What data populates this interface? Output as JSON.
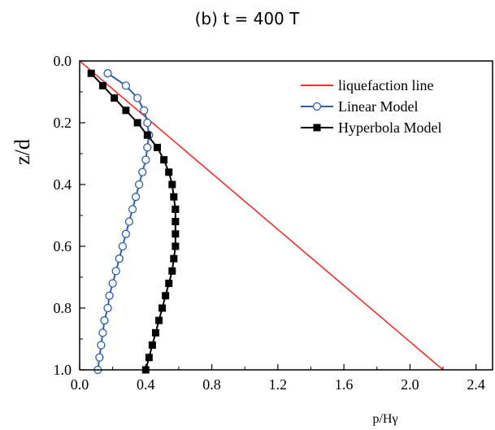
{
  "chart_data": {
    "type": "line",
    "title": "(b) t = 400 T",
    "xlabel": "p/Hγ",
    "ylabel": "z/d",
    "xlim": [
      0.0,
      2.5
    ],
    "ylim": [
      0.0,
      1.0
    ],
    "y_inverted": true,
    "xticks": [
      "0.0",
      "0.4",
      "0.8",
      "1.2",
      "1.6",
      "2.0",
      "2.4"
    ],
    "yticks": [
      "0.0",
      "0.2",
      "0.4",
      "0.6",
      "0.8",
      "1.0"
    ],
    "grid": false,
    "legend_position": "top-right",
    "series": [
      {
        "name": "liquefaction line",
        "color": "#e8312b",
        "marker": "none",
        "points": [
          [
            0.0,
            0.0
          ],
          [
            2.2,
            1.0
          ]
        ]
      },
      {
        "name": "Linear Model",
        "color": "#2f5eaa",
        "marker": "open-circle",
        "points": [
          [
            0.17,
            0.04
          ],
          [
            0.28,
            0.08
          ],
          [
            0.35,
            0.12
          ],
          [
            0.39,
            0.16
          ],
          [
            0.41,
            0.2
          ],
          [
            0.42,
            0.24
          ],
          [
            0.41,
            0.28
          ],
          [
            0.4,
            0.32
          ],
          [
            0.38,
            0.36
          ],
          [
            0.36,
            0.4
          ],
          [
            0.34,
            0.44
          ],
          [
            0.32,
            0.48
          ],
          [
            0.3,
            0.52
          ],
          [
            0.28,
            0.56
          ],
          [
            0.26,
            0.6
          ],
          [
            0.24,
            0.64
          ],
          [
            0.22,
            0.68
          ],
          [
            0.2,
            0.72
          ],
          [
            0.18,
            0.76
          ],
          [
            0.17,
            0.8
          ],
          [
            0.15,
            0.84
          ],
          [
            0.14,
            0.88
          ],
          [
            0.13,
            0.92
          ],
          [
            0.12,
            0.96
          ],
          [
            0.11,
            1.0
          ]
        ]
      },
      {
        "name": "Hyperbola Model",
        "color": "#000000",
        "marker": "filled-square",
        "points": [
          [
            0.07,
            0.04
          ],
          [
            0.14,
            0.08
          ],
          [
            0.21,
            0.12
          ],
          [
            0.28,
            0.16
          ],
          [
            0.35,
            0.2
          ],
          [
            0.41,
            0.24
          ],
          [
            0.47,
            0.28
          ],
          [
            0.51,
            0.32
          ],
          [
            0.54,
            0.36
          ],
          [
            0.56,
            0.4
          ],
          [
            0.57,
            0.44
          ],
          [
            0.58,
            0.48
          ],
          [
            0.58,
            0.52
          ],
          [
            0.58,
            0.56
          ],
          [
            0.58,
            0.6
          ],
          [
            0.57,
            0.64
          ],
          [
            0.56,
            0.68
          ],
          [
            0.54,
            0.72
          ],
          [
            0.52,
            0.76
          ],
          [
            0.5,
            0.8
          ],
          [
            0.48,
            0.84
          ],
          [
            0.46,
            0.88
          ],
          [
            0.44,
            0.92
          ],
          [
            0.42,
            0.96
          ],
          [
            0.4,
            1.0
          ]
        ]
      }
    ]
  }
}
